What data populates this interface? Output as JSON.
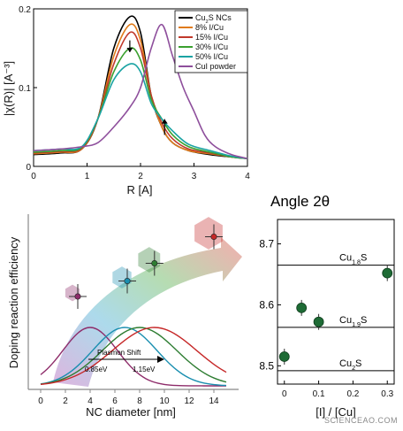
{
  "chart_data": [
    {
      "type": "line",
      "xlabel": "R [A]",
      "ylabel": "|χ(R)| [A⁻³]",
      "xlim": [
        0,
        4
      ],
      "ylim": [
        0,
        0.2
      ],
      "x_ticks": [
        "0",
        "1",
        "2",
        "3",
        "4"
      ],
      "y_ticks": [
        "0",
        "0.1",
        "0.2"
      ],
      "legend_position": "top-right",
      "series": [
        {
          "name": "Cu2S NCs",
          "name_main": "Cu",
          "name_sub": "2",
          "name_rest": "S NCs",
          "color": "#000000",
          "points": [
            [
              0,
              0.015
            ],
            [
              0.5,
              0.017
            ],
            [
              0.9,
              0.022
            ],
            [
              1.2,
              0.06
            ],
            [
              1.5,
              0.15
            ],
            [
              1.8,
              0.19
            ],
            [
              2.0,
              0.17
            ],
            [
              2.2,
              0.09
            ],
            [
              2.4,
              0.05
            ],
            [
              2.6,
              0.03
            ],
            [
              2.9,
              0.02
            ],
            [
              3.3,
              0.015
            ],
            [
              3.7,
              0.012
            ],
            [
              4,
              0.01
            ]
          ]
        },
        {
          "name": "8% I/Cu",
          "color": "#e07b1a",
          "points": [
            [
              0,
              0.016
            ],
            [
              0.5,
              0.018
            ],
            [
              0.9,
              0.022
            ],
            [
              1.2,
              0.06
            ],
            [
              1.5,
              0.14
            ],
            [
              1.8,
              0.18
            ],
            [
              2.0,
              0.16
            ],
            [
              2.2,
              0.09
            ],
            [
              2.4,
              0.05
            ],
            [
              2.6,
              0.03
            ],
            [
              2.9,
              0.02
            ],
            [
              3.3,
              0.016
            ],
            [
              3.7,
              0.012
            ],
            [
              4,
              0.01
            ]
          ]
        },
        {
          "name": "15% I/Cu",
          "color": "#c0392b",
          "points": [
            [
              0,
              0.017
            ],
            [
              0.5,
              0.019
            ],
            [
              0.9,
              0.023
            ],
            [
              1.2,
              0.06
            ],
            [
              1.5,
              0.13
            ],
            [
              1.8,
              0.17
            ],
            [
              2.0,
              0.15
            ],
            [
              2.2,
              0.09
            ],
            [
              2.4,
              0.055
            ],
            [
              2.6,
              0.035
            ],
            [
              2.9,
              0.022
            ],
            [
              3.3,
              0.017
            ],
            [
              3.7,
              0.012
            ],
            [
              4,
              0.01
            ]
          ]
        },
        {
          "name": "30% I/Cu",
          "color": "#3aa02f",
          "points": [
            [
              0,
              0.018
            ],
            [
              0.5,
              0.02
            ],
            [
              0.9,
              0.024
            ],
            [
              1.2,
              0.06
            ],
            [
              1.5,
              0.12
            ],
            [
              1.8,
              0.15
            ],
            [
              2.0,
              0.135
            ],
            [
              2.2,
              0.085
            ],
            [
              2.4,
              0.06
            ],
            [
              2.6,
              0.04
            ],
            [
              2.9,
              0.025
            ],
            [
              3.3,
              0.018
            ],
            [
              3.7,
              0.012
            ],
            [
              4,
              0.01
            ]
          ]
        },
        {
          "name": "50% I/Cu",
          "color": "#1aa3a3",
          "points": [
            [
              0,
              0.02
            ],
            [
              0.5,
              0.022
            ],
            [
              0.9,
              0.025
            ],
            [
              1.2,
              0.06
            ],
            [
              1.5,
              0.11
            ],
            [
              1.8,
              0.13
            ],
            [
              2.0,
              0.12
            ],
            [
              2.2,
              0.08
            ],
            [
              2.4,
              0.06
            ],
            [
              2.6,
              0.045
            ],
            [
              2.9,
              0.028
            ],
            [
              3.3,
              0.02
            ],
            [
              3.7,
              0.013
            ],
            [
              4,
              0.01
            ]
          ]
        },
        {
          "name": "CuI powder",
          "color": "#8e4f9c",
          "points": [
            [
              0,
              0.02
            ],
            [
              0.5,
              0.022
            ],
            [
              0.9,
              0.025
            ],
            [
              1.2,
              0.03
            ],
            [
              1.5,
              0.05
            ],
            [
              1.8,
              0.075
            ],
            [
              2.0,
              0.1
            ],
            [
              2.2,
              0.15
            ],
            [
              2.4,
              0.18
            ],
            [
              2.6,
              0.14
            ],
            [
              2.8,
              0.1
            ],
            [
              3.0,
              0.07
            ],
            [
              3.2,
              0.04
            ],
            [
              3.4,
              0.025
            ],
            [
              3.7,
              0.015
            ],
            [
              4,
              0.01
            ]
          ]
        }
      ],
      "annotations": [
        {
          "type": "arrow-down",
          "x": 1.8,
          "from": 0.16,
          "to": 0.145
        },
        {
          "type": "arrow-up",
          "x": 2.45,
          "from": 0.04,
          "to": 0.06
        }
      ]
    },
    {
      "type": "scatter",
      "xlabel": "NC diameter [nm]",
      "ylabel": "Doping reaction efficiency",
      "xlim": [
        -1,
        16
      ],
      "x_ticks": [
        "0",
        "2",
        "4",
        "6",
        "8",
        "10",
        "12",
        "14"
      ],
      "points": [
        {
          "x": 3.0,
          "y": 0.42,
          "color": "#8e2c6a"
        },
        {
          "x": 7.0,
          "y": 0.49,
          "color": "#1a8fb0"
        },
        {
          "x": 9.2,
          "y": 0.57,
          "color": "#2e7d32"
        },
        {
          "x": 14.0,
          "y": 0.69,
          "color": "#c62828"
        }
      ],
      "annotation_plasmon": "Plasmon Shift",
      "annotation_left": "0.85eV",
      "annotation_right": "1.15eV"
    },
    {
      "type": "scatter",
      "title": "Angle 2θ",
      "xlabel": "[I] / [Cu]",
      "xlim": [
        -0.02,
        0.32
      ],
      "ylim": [
        8.47,
        8.74
      ],
      "x_ticks": [
        "0",
        "0.1",
        "0.2",
        "0.3"
      ],
      "y_ticks": [
        "8.5",
        "8.6",
        "8.7"
      ],
      "color": "#1e6b35",
      "points": [
        [
          0,
          8.515
        ],
        [
          0.05,
          8.595
        ],
        [
          0.1,
          8.572
        ],
        [
          0.3,
          8.652
        ]
      ],
      "reference_lines": [
        {
          "y": 8.665,
          "main": "Cu",
          "sub": "1.8",
          "rest": "S"
        },
        {
          "y": 8.563,
          "main": "Cu",
          "sub": "1.9",
          "rest": "S"
        },
        {
          "y": 8.492,
          "main": "Cu",
          "sub": "2",
          "rest": "S"
        }
      ]
    }
  ],
  "watermark": "SCIENCEAO.COM"
}
